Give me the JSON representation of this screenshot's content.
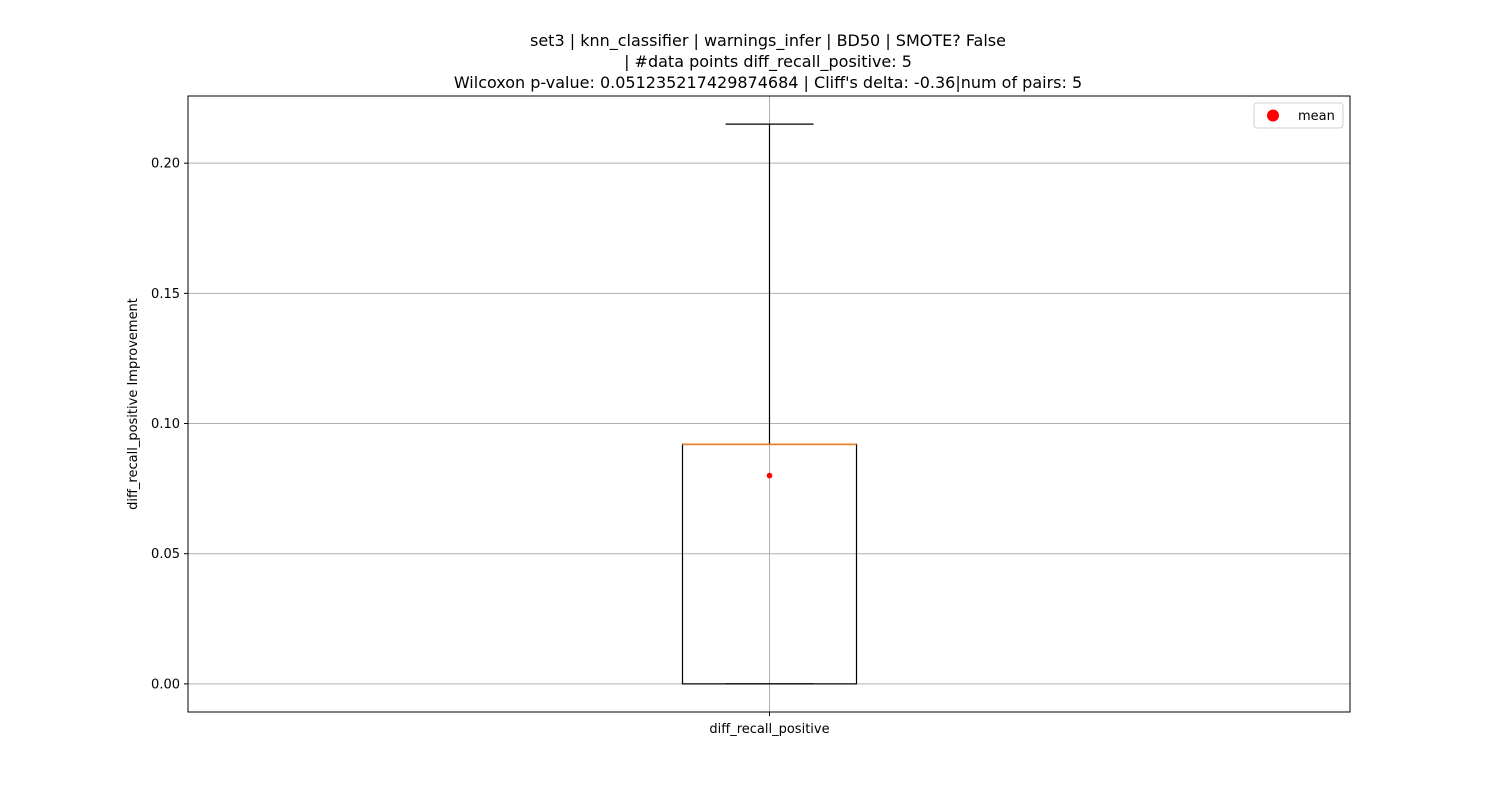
{
  "chart_data": {
    "type": "box",
    "title_lines": [
      "set3 | knn_classifier | warnings_infer | BD50 | SMOTE? False",
      "| #data points diff_recall_positive: 5",
      "Wilcoxon p-value: 0.051235217429874684 | Cliff's delta: -0.36|num of pairs: 5"
    ],
    "xlabel": "",
    "ylabel": "diff_recall_positive Improvement",
    "categories": [
      "diff_recall_positive"
    ],
    "box": {
      "whisker_low": 0.0,
      "q1": 0.0,
      "median": 0.092,
      "q3": 0.092,
      "whisker_high": 0.215,
      "mean": 0.08
    },
    "ylim": [
      -0.0108,
      0.2258
    ],
    "yticks": [
      "0.00",
      "0.05",
      "0.10",
      "0.15",
      "0.20"
    ],
    "grid": true,
    "legend": {
      "position": "top-right",
      "entries": [
        {
          "label": "mean",
          "color": "#ff0000"
        }
      ]
    },
    "colors": {
      "median": "#e8852a",
      "mean": "#ff0000",
      "box": "#000000",
      "grid": "#b0b0b0"
    }
  }
}
